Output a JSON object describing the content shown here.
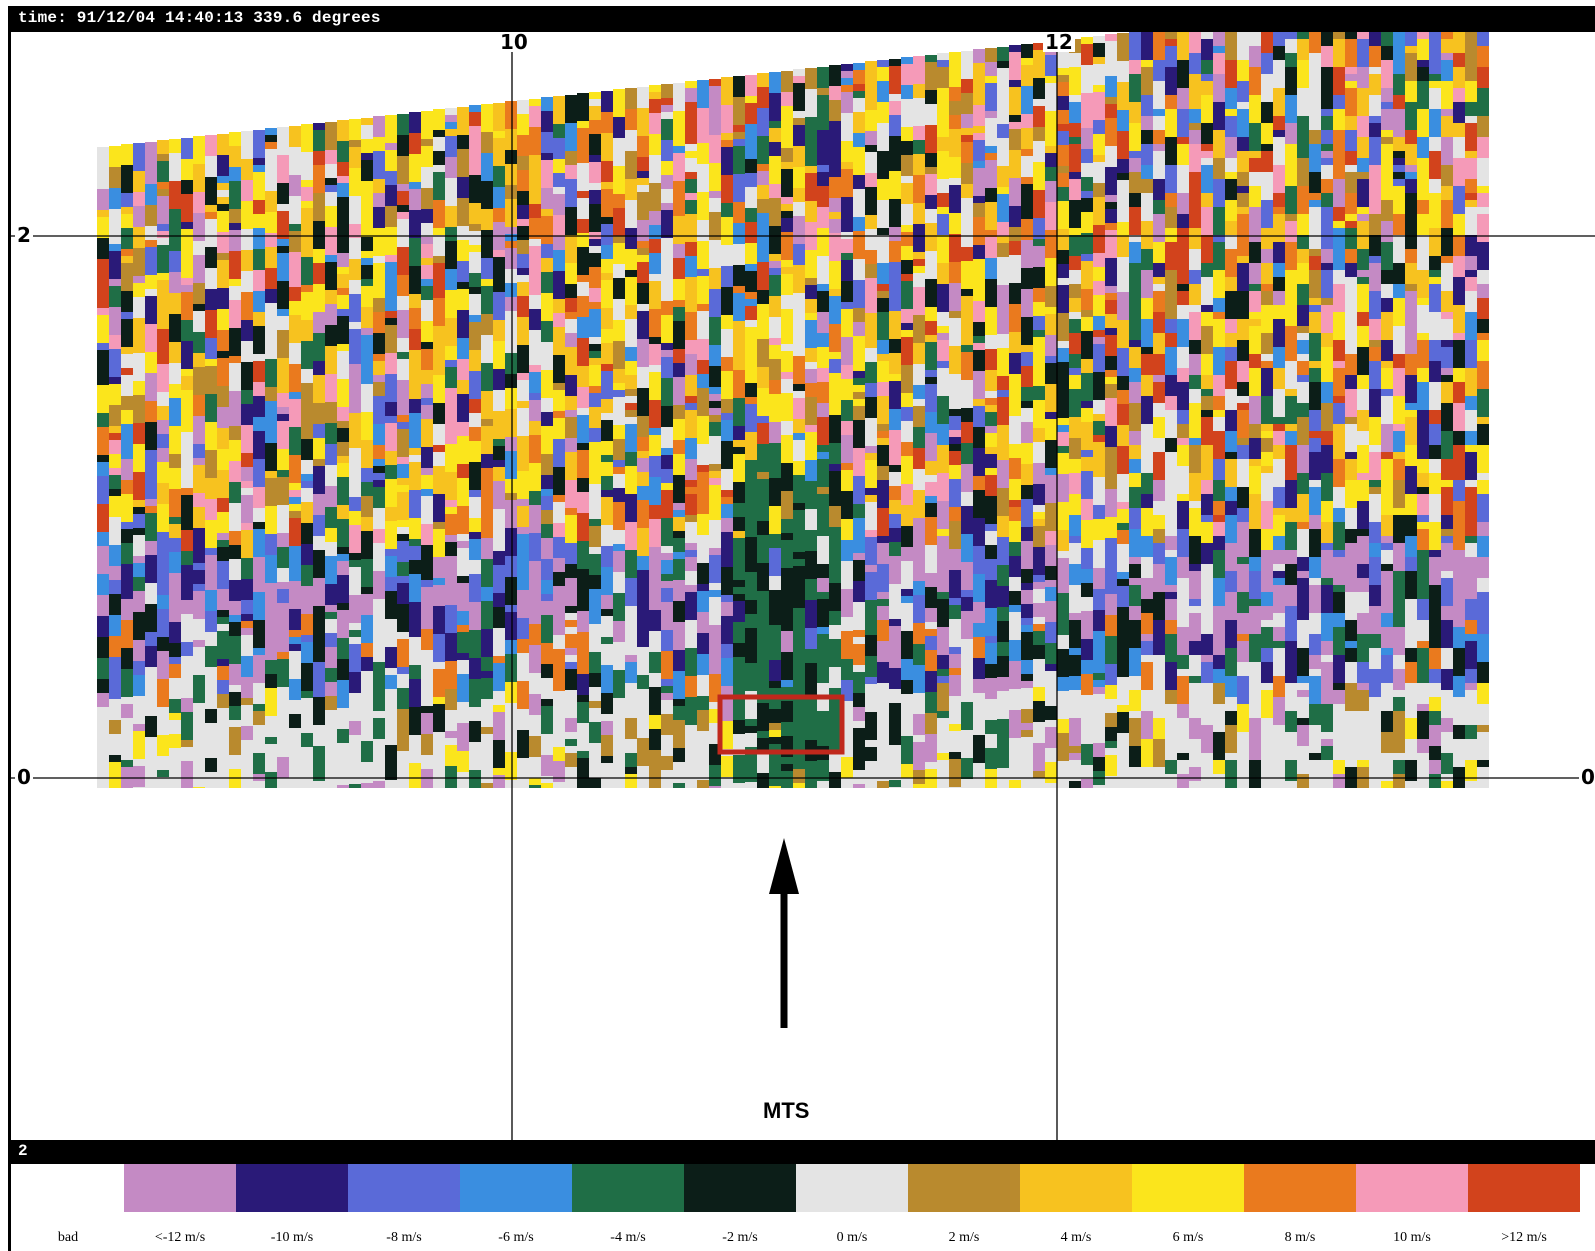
{
  "window": {
    "title": "time: 91/12/04 14:40:13 339.6 degrees"
  },
  "plot": {
    "x_ticks": [
      "10",
      "12"
    ],
    "y_ticks": [
      "2",
      "0"
    ],
    "y_tick_right": "0",
    "annotation": "MTS"
  },
  "legend": {
    "header": "2",
    "items": [
      {
        "label": "bad",
        "color": "#ffffff"
      },
      {
        "label": "<-12 m/s",
        "color": "#c48ac4"
      },
      {
        "label": "-10 m/s",
        "color": "#2a1a78"
      },
      {
        "label": "-8 m/s",
        "color": "#5a6ad8"
      },
      {
        "label": "-6 m/s",
        "color": "#3a8ee0"
      },
      {
        "label": "-4 m/s",
        "color": "#1f6e46"
      },
      {
        "label": "-2 m/s",
        "color": "#0c1e18"
      },
      {
        "label": "0 m/s",
        "color": "#e4e4e4"
      },
      {
        "label": "2 m/s",
        "color": "#b98a2e"
      },
      {
        "label": "4 m/s",
        "color": "#f7c21f"
      },
      {
        "label": "6 m/s",
        "color": "#fbe51c"
      },
      {
        "label": "8 m/s",
        "color": "#ea7a1e"
      },
      {
        "label": "10 m/s",
        "color": "#f59ab8"
      },
      {
        "label": ">12 m/s",
        "color": "#d2431c"
      }
    ]
  }
}
